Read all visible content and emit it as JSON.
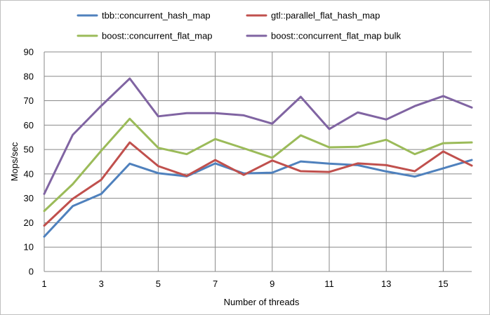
{
  "chart_data": {
    "type": "line",
    "xlabel": "Number of threads",
    "ylabel": "Mops/sec",
    "xlim": [
      1,
      16
    ],
    "ylim": [
      0,
      90
    ],
    "xticks": [
      1,
      3,
      5,
      7,
      9,
      11,
      13,
      15
    ],
    "yticks": [
      0,
      10,
      20,
      30,
      40,
      50,
      60,
      70,
      80,
      90
    ],
    "grid": "horizontal and vertical",
    "legend_position": "top",
    "x": [
      1,
      2,
      3,
      4,
      5,
      6,
      7,
      8,
      9,
      10,
      11,
      12,
      13,
      14,
      15,
      16
    ],
    "series": [
      {
        "name": "tbb::concurrent_hash_map",
        "color": "#4f81bd",
        "values": [
          14.3,
          26.8,
          31.8,
          44.2,
          40.3,
          39.0,
          44.3,
          40.2,
          40.5,
          45.1,
          44.2,
          43.6,
          41.0,
          38.9,
          42.3,
          45.7
        ]
      },
      {
        "name": "gtl::parallel_flat_hash_map",
        "color": "#c0504d",
        "values": [
          18.8,
          29.8,
          37.6,
          52.9,
          43.2,
          39.2,
          45.7,
          39.6,
          45.5,
          41.1,
          40.8,
          44.3,
          43.6,
          41.1,
          49.2,
          43.4
        ]
      },
      {
        "name": "boost::concurrent_flat_map",
        "color": "#9bbb59",
        "values": [
          24.8,
          35.8,
          49.5,
          62.6,
          50.7,
          48.1,
          54.3,
          50.5,
          46.6,
          55.8,
          50.9,
          51.1,
          54.0,
          48.1,
          52.6,
          52.9
        ]
      },
      {
        "name": "boost::concurrent_flat_map bulk",
        "color": "#8064a2",
        "values": [
          31.8,
          56.0,
          67.9,
          79.1,
          63.6,
          64.9,
          64.9,
          64.0,
          60.6,
          71.6,
          58.4,
          65.2,
          62.3,
          67.8,
          71.9,
          67.2
        ]
      }
    ]
  }
}
